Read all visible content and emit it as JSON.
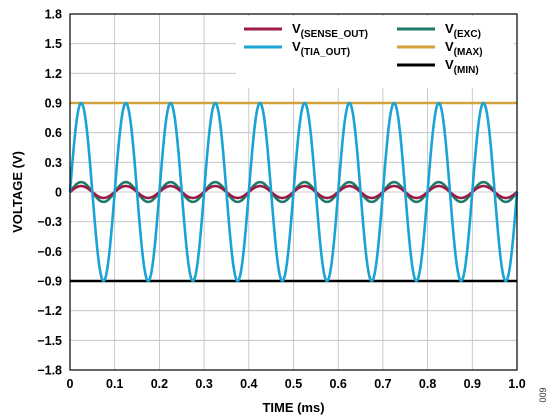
{
  "chart_data": {
    "type": "line",
    "xlabel": "TIME (ms)",
    "ylabel": "VOLTAGE (V)",
    "xlim": [
      0,
      1.0
    ],
    "ylim": [
      -1.8,
      1.8
    ],
    "x_ticks": [
      "0",
      "0.1",
      "0.2",
      "0.3",
      "0.4",
      "0.5",
      "0.6",
      "0.7",
      "0.8",
      "0.9",
      "1.0"
    ],
    "y_ticks": [
      "1.8",
      "1.5",
      "1.2",
      "0.9",
      "0.6",
      "0.3",
      "0",
      "−0.3",
      "−0.6",
      "−0.9",
      "−1.2",
      "−1.5",
      "−1.8"
    ],
    "grid": true,
    "legend_position": "top-right",
    "series": [
      {
        "name_main": "V",
        "name_sub": "(SENSE_OUT)",
        "color": "#9b1b45",
        "kind": "sine",
        "amplitude": 0.06,
        "offset": 0,
        "frequency_khz": 10,
        "phase_deg": 0
      },
      {
        "name_main": "V",
        "name_sub": "(TIA_OUT)",
        "color": "#1aa3d4",
        "kind": "sine",
        "amplitude": 0.9,
        "offset": 0,
        "frequency_khz": 10,
        "phase_deg": 0
      },
      {
        "name_main": "V",
        "name_sub": "(EXC)",
        "color": "#1e7a6a",
        "kind": "sine",
        "amplitude": 0.1,
        "offset": 0,
        "frequency_khz": 10,
        "phase_deg": 0
      },
      {
        "name_main": "V",
        "name_sub": "(MAX)",
        "color": "#d4a13a",
        "kind": "constant",
        "value": 0.9
      },
      {
        "name_main": "V",
        "name_sub": "(MIN)",
        "color": "#000000",
        "kind": "constant",
        "value": -0.9
      }
    ],
    "side_label": "009"
  }
}
